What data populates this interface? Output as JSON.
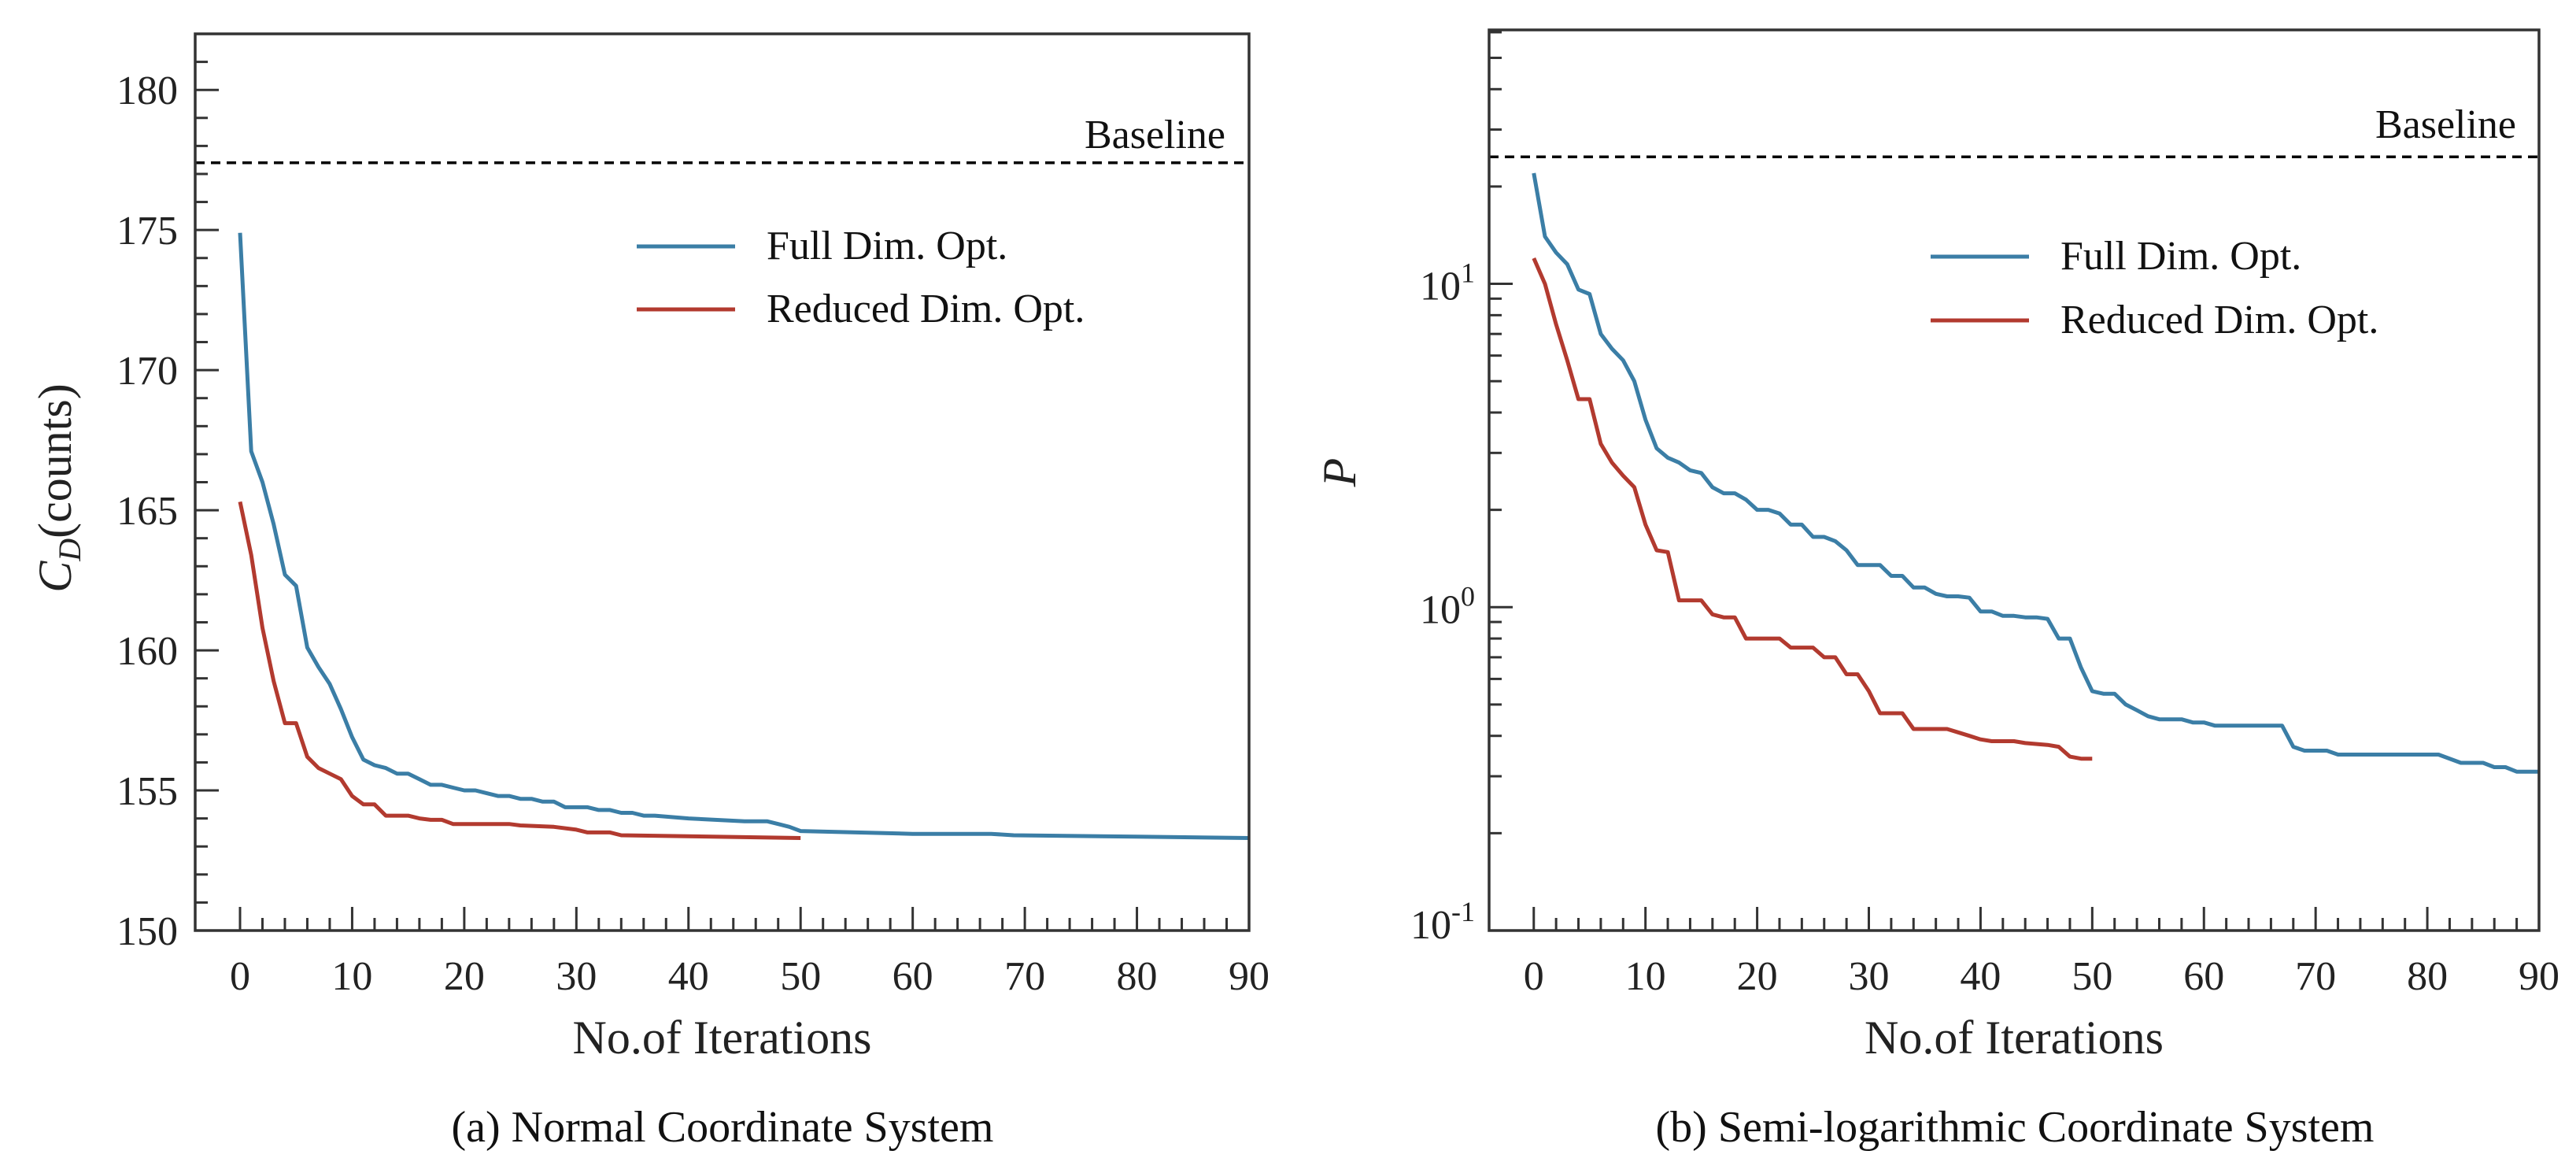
{
  "colors": {
    "full": "#3b7ea6",
    "reduced": "#b23a2f",
    "baseline": "#000000"
  },
  "chart_data": [
    {
      "type": "line",
      "caption": "(a) Normal Coordinate System",
      "xlabel": "No.of Iterations",
      "ylabel_main": "C",
      "ylabel_sub": "D",
      "ylabel_unit": "(counts)",
      "xlim": [
        -4,
        90
      ],
      "ylim": [
        150,
        182
      ],
      "yscale": "linear",
      "xticks": [
        0,
        10,
        20,
        30,
        40,
        50,
        60,
        70,
        80,
        90
      ],
      "yticks": [
        150,
        155,
        160,
        165,
        170,
        175,
        180
      ],
      "ytick_labels": [
        "150",
        "155",
        "160",
        "165",
        "170",
        "175",
        "180"
      ],
      "baseline": {
        "label": "Baseline",
        "value": 177.4
      },
      "legend": {
        "placement": "upper-right",
        "entries": [
          "Full Dim. Opt.",
          "Reduced Dim. Opt."
        ]
      },
      "series": [
        {
          "name": "Full Dim. Opt.",
          "x": [
            0,
            1,
            2,
            3,
            4,
            5,
            6,
            7,
            8,
            9,
            10,
            11,
            12,
            13,
            14,
            15,
            16,
            17,
            18,
            19,
            20,
            21,
            22,
            23,
            24,
            25,
            26,
            27,
            28,
            29,
            30,
            31,
            32,
            33,
            34,
            35,
            36,
            37,
            40,
            45,
            47,
            48,
            49,
            50,
            55,
            60,
            67,
            69,
            80,
            90
          ],
          "y": [
            174.9,
            167.1,
            166,
            164.5,
            162.7,
            162.3,
            160.1,
            159.4,
            158.8,
            157.9,
            156.9,
            156.1,
            155.9,
            155.8,
            155.6,
            155.6,
            155.4,
            155.2,
            155.2,
            155.1,
            155,
            155,
            154.9,
            154.8,
            154.8,
            154.7,
            154.7,
            154.6,
            154.6,
            154.4,
            154.4,
            154.4,
            154.3,
            154.3,
            154.2,
            154.2,
            154.1,
            154.1,
            154.0,
            153.9,
            153.9,
            153.8,
            153.7,
            153.55,
            153.5,
            153.45,
            153.45,
            153.4,
            153.35,
            153.3
          ]
        },
        {
          "name": "Reduced Dim. Opt.",
          "x": [
            0,
            1,
            2,
            3,
            4,
            5,
            6,
            7,
            8,
            9,
            10,
            11,
            12,
            13,
            14,
            15,
            16,
            17,
            18,
            19,
            24,
            25,
            28,
            30,
            31,
            33,
            34,
            50
          ],
          "y": [
            165.3,
            163.4,
            160.8,
            158.9,
            157.4,
            157.4,
            156.2,
            155.8,
            155.6,
            155.4,
            154.8,
            154.5,
            154.5,
            154.1,
            154.1,
            154.1,
            154,
            153.95,
            153.95,
            153.8,
            153.8,
            153.75,
            153.7,
            153.6,
            153.5,
            153.5,
            153.4,
            153.3
          ]
        }
      ]
    },
    {
      "type": "line",
      "caption": "(b) Semi-logarithmic Coordinate System",
      "xlabel": "No.of Iterations",
      "ylabel_main": "P",
      "xlim": [
        -4,
        90
      ],
      "ylim": [
        0.1,
        61
      ],
      "yscale": "log",
      "xticks": [
        0,
        10,
        20,
        30,
        40,
        50,
        60,
        70,
        80,
        90
      ],
      "yticks": [
        0.1,
        1,
        10
      ],
      "ytick_labels": [
        {
          "base": "10",
          "exp": "-1"
        },
        {
          "base": "10",
          "exp": "0"
        },
        {
          "base": "10",
          "exp": "1"
        }
      ],
      "baseline": {
        "label": "Baseline",
        "value": 24.7
      },
      "legend": {
        "placement": "upper-right",
        "entries": [
          "Full Dim. Opt.",
          "Reduced Dim. Opt."
        ]
      },
      "series": [
        {
          "name": "Full Dim. Opt.",
          "x": [
            0,
            1,
            2,
            3,
            4,
            5,
            6,
            7,
            8,
            9,
            10,
            11,
            12,
            13,
            14,
            15,
            16,
            17,
            18,
            19,
            20,
            21,
            22,
            23,
            24,
            25,
            26,
            27,
            28,
            29,
            30,
            31,
            32,
            33,
            34,
            35,
            36,
            37,
            38,
            39,
            40,
            41,
            42,
            43,
            44,
            45,
            46,
            47,
            48,
            49,
            50,
            51,
            52,
            53,
            54,
            55,
            56,
            57,
            58,
            59,
            60,
            61,
            67,
            68,
            69,
            71,
            72,
            80,
            81,
            83,
            85,
            86,
            87,
            88,
            90
          ],
          "y": [
            22,
            14,
            12.5,
            11.5,
            9.6,
            9.3,
            7,
            6.3,
            5.8,
            5,
            3.8,
            3.1,
            2.9,
            2.8,
            2.65,
            2.6,
            2.35,
            2.25,
            2.25,
            2.15,
            2.0,
            2.0,
            1.95,
            1.8,
            1.8,
            1.65,
            1.65,
            1.6,
            1.5,
            1.35,
            1.35,
            1.35,
            1.25,
            1.25,
            1.15,
            1.15,
            1.1,
            1.08,
            1.08,
            1.07,
            0.97,
            0.97,
            0.94,
            0.94,
            0.93,
            0.93,
            0.92,
            0.8,
            0.8,
            0.65,
            0.55,
            0.54,
            0.54,
            0.5,
            0.48,
            0.46,
            0.45,
            0.45,
            0.45,
            0.44,
            0.44,
            0.43,
            0.43,
            0.37,
            0.36,
            0.36,
            0.35,
            0.35,
            0.35,
            0.33,
            0.33,
            0.32,
            0.32,
            0.31,
            0.31
          ]
        },
        {
          "name": "Reduced Dim. Opt.",
          "x": [
            0,
            1,
            2,
            3,
            4,
            5,
            6,
            7,
            8,
            9,
            10,
            11,
            12,
            13,
            14,
            15,
            16,
            17,
            18,
            19,
            22,
            23,
            25,
            26,
            27,
            28,
            29,
            30,
            31,
            33,
            34,
            37,
            38,
            39,
            40,
            41,
            43,
            44,
            46,
            47,
            48,
            49,
            50
          ],
          "y": [
            12,
            10,
            7.5,
            5.8,
            4.4,
            4.4,
            3.2,
            2.8,
            2.55,
            2.35,
            1.8,
            1.5,
            1.48,
            1.05,
            1.05,
            1.05,
            0.95,
            0.93,
            0.93,
            0.8,
            0.8,
            0.75,
            0.75,
            0.7,
            0.7,
            0.62,
            0.62,
            0.55,
            0.47,
            0.47,
            0.42,
            0.42,
            0.41,
            0.4,
            0.39,
            0.385,
            0.385,
            0.38,
            0.375,
            0.37,
            0.345,
            0.34,
            0.34
          ]
        }
      ]
    }
  ]
}
